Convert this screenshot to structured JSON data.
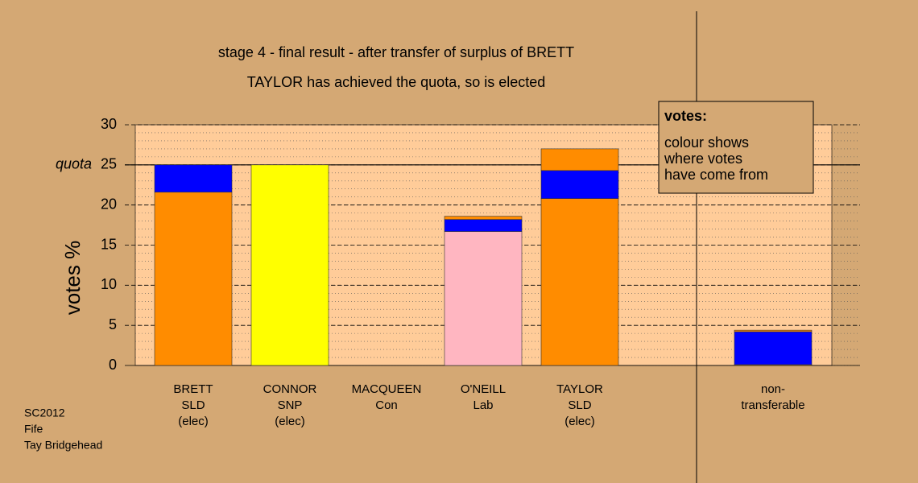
{
  "chart_data": {
    "type": "stacked_bar",
    "title": "stage 4 - final result - after transfer of surplus of BRETT",
    "subtitle": "TAYLOR has achieved the quota, so is elected",
    "y_label": "votes %",
    "categories": [
      [
        "BRETT",
        "SLD",
        "(elec)"
      ],
      [
        "CONNOR",
        "SNP",
        "(elec)"
      ],
      [
        "MACQUEEN",
        "Con"
      ],
      [
        "O'NEILL",
        "Lab"
      ],
      [
        "TAYLOR",
        "SLD",
        "(elec)"
      ],
      null,
      [
        "non-",
        "transferable"
      ]
    ],
    "series": [
      {
        "colors": [
          "#ff8c00",
          "#ffff00",
          "#ff8c00",
          "#ffb6c1",
          "#ff8c00",
          null,
          "#ff8c00"
        ],
        "values": [
          21.6,
          25,
          0,
          16.7,
          20.8,
          null,
          0.1
        ]
      },
      {
        "colors": [
          "#0000ff",
          "#0000ff",
          "#0000ff",
          "#0000ff",
          "#0000ff",
          null,
          "#0000ff"
        ],
        "values": [
          3.4,
          0,
          0,
          1.5,
          3.5,
          null,
          4.1
        ]
      },
      {
        "colors": [
          "#ff8c00",
          "#ff8c00",
          "#ff8c00",
          "#ff8c00",
          "#ff8c00",
          null,
          "#ff8c00"
        ],
        "values": [
          0,
          0,
          0,
          0.4,
          2.7,
          null,
          0.2
        ]
      }
    ],
    "ylim": [
      0,
      30
    ],
    "yticks": [
      0,
      5,
      10,
      15,
      20,
      25,
      30
    ],
    "minor_grid_step": 1,
    "quota": {
      "value": 25,
      "label": "quota"
    },
    "note": {
      "title": "votes:",
      "lines": [
        "colour shows",
        "where votes",
        "have come from"
      ]
    },
    "source_lines": [
      "SC2012",
      "Fife",
      "Tay Bridgehead"
    ]
  }
}
